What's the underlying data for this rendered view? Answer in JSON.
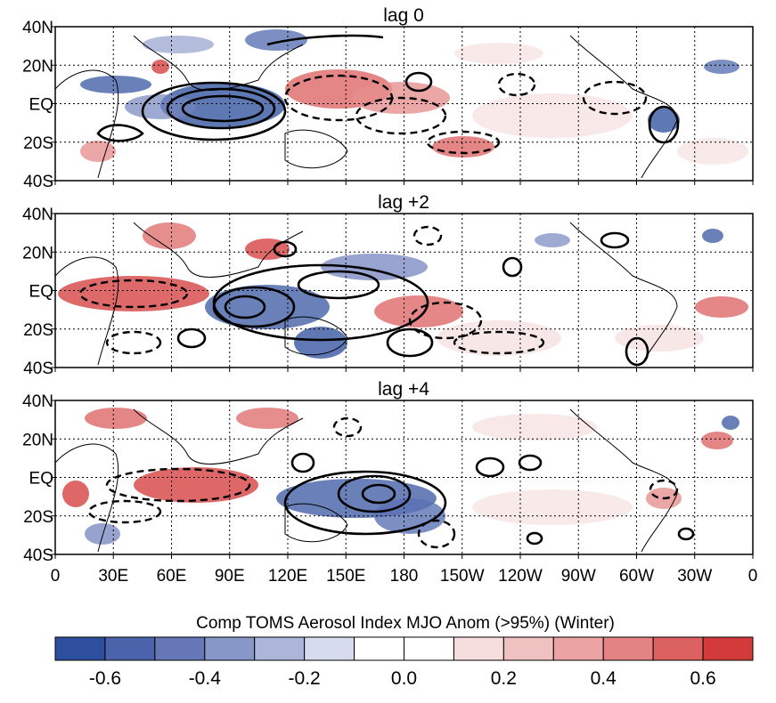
{
  "chart_data": {
    "type": "heatmap",
    "colorbar_title": "Comp TOMS Aerosol Index MJO Anom (>95%) (Winter)",
    "panels": [
      {
        "title": "lag 0",
        "positive_anomaly_regions": [
          "Arabian Sea",
          "western Pacific 0-20N, 120E-180",
          "South Pacific convergence zone 20S, 150W",
          "southern Africa 20S, 20E",
          "Gulf of Guinea"
        ],
        "negative_anomaly_regions": [
          "Indian Ocean 90E",
          "Arabian Peninsula",
          "western North Pacific 30N",
          "eastern Brazil",
          "North Atlantic"
        ],
        "contours": "solid contours centered over Indian Ocean near 90E, 0-10S; dashed contours over western and central Pacific"
      },
      {
        "title": "lag +2",
        "positive_anomaly_regions": [
          "tropical Africa and Atlantic 0-10N",
          "South China Sea 20N",
          "central Pacific 10S, 180-150W",
          "tropical South Atlantic 20S, 30W-0"
        ],
        "negative_anomaly_regions": [
          "Maritime Continent 90E-150E",
          "northern Australia",
          "western Pacific 10N",
          "Caribbean"
        ],
        "contours": "solid contours over eastern Indian Ocean and Maritime Continent near 90E-150E; dashed contours over western Indian Ocean and central Pacific"
      },
      {
        "title": "lag +4",
        "positive_anomaly_regions": [
          "Indian Ocean and Arabian Sea 0-30N",
          "western Africa coast",
          "central Brazil",
          "western Atlantic 20N"
        ],
        "negative_anomaly_regions": [
          "western Pacific 10S, 150E-180",
          "southern Africa",
          "Atlantic 30N, 30W"
        ],
        "contours": "solid contours over western Pacific near 150E-180, 10S; dashed contours over Indian Ocean"
      }
    ],
    "x_ticks": [
      "0",
      "30E",
      "60E",
      "90E",
      "120E",
      "150E",
      "180",
      "150W",
      "120W",
      "90W",
      "60W",
      "30W",
      "0"
    ],
    "y_ticks": [
      "40N",
      "20N",
      "EQ",
      "20S",
      "40S"
    ],
    "lon_range": [
      0,
      360
    ],
    "lat_range": [
      -40,
      40
    ],
    "grid": true,
    "colorbar": {
      "boundaries": [
        -0.7,
        -0.6,
        -0.5,
        -0.4,
        -0.3,
        -0.2,
        -0.1,
        0.0,
        0.1,
        0.2,
        0.3,
        0.4,
        0.5,
        0.6,
        0.7
      ],
      "colors": [
        "#2e4f9e",
        "#4a63ab",
        "#6577b7",
        "#8797c8",
        "#abb6da",
        "#d6dbee",
        "#ffffff",
        "#ffffff",
        "#f6dede",
        "#efc1c1",
        "#eba3a3",
        "#e38383",
        "#dc6161",
        "#d33b3b"
      ],
      "tick_labels": [
        "-0.6",
        "-0.4",
        "-0.2",
        "0.0",
        "0.2",
        "0.4",
        "0.6"
      ],
      "tick_values": [
        -0.6,
        -0.4,
        -0.2,
        0.0,
        0.2,
        0.4,
        0.6
      ]
    }
  }
}
